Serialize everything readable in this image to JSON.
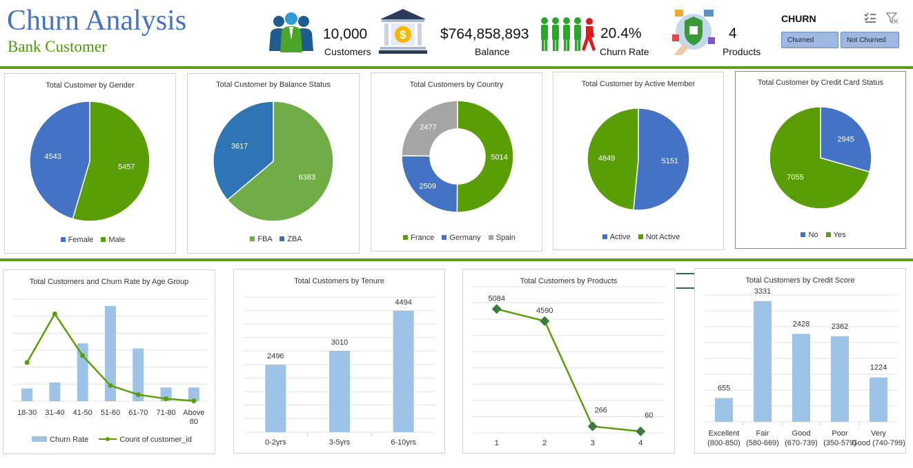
{
  "header": {
    "title": "Churn Analysis",
    "subtitle": "Bank Customer"
  },
  "kpis": [
    {
      "value": "10,000",
      "label": "Customers",
      "icon": "people-icon"
    },
    {
      "value": "$764,858,893",
      "label": "Balance",
      "icon": "bank-icon"
    },
    {
      "value": "20.4%",
      "label": "Churn Rate",
      "icon": "churn-people-icon"
    },
    {
      "value": "4",
      "label": "Products",
      "icon": "products-icon"
    }
  ],
  "slicer": {
    "title": "CHURN",
    "options": [
      "Churned",
      "Not Churned"
    ],
    "icons": [
      "multi-select-icon",
      "clear-filter-icon"
    ]
  },
  "colors": {
    "green": "#5a9e07",
    "blue": "#4472c4",
    "light_green": "#70ad47",
    "mid_blue": "#2e75b6",
    "gray": "#a5a5a5",
    "light_blue": "#9dc3e6",
    "rule": "#5aa012"
  },
  "charts": {
    "gender": {
      "title": "Total Customer by Gender",
      "legend": [
        "Female",
        "Male"
      ]
    },
    "balance": {
      "title": "Total Customer by Balance Status",
      "legend": [
        "FBA",
        "ZBA"
      ]
    },
    "country": {
      "title": "Total Customers by Country",
      "legend": [
        "France",
        "Germany",
        "Spain"
      ]
    },
    "active": {
      "title": "Total Customer by Active Member",
      "legend": [
        "Active",
        "Not Active"
      ]
    },
    "card": {
      "title": "Total Customer by Credit Card Status",
      "legend": [
        "No",
        "Yes"
      ]
    },
    "age": {
      "title": "Total Customers and Churn Rate by Age Group",
      "legend": [
        "Churn Rate",
        "Count of customer_id"
      ]
    },
    "tenure": {
      "title": "Total Customers by Tenure"
    },
    "products": {
      "title": "Total Customers by Products"
    },
    "credit": {
      "title": "Total Customers by Credit Score"
    }
  },
  "chart_data": [
    {
      "type": "pie",
      "title": "Total Customer by Gender",
      "labels": [
        "Female",
        "Male"
      ],
      "values": [
        5457,
        4543
      ],
      "colors": [
        "#5a9e07",
        "#4472c4"
      ],
      "legend_position": "bottom"
    },
    {
      "type": "pie",
      "title": "Total Customer by Balance Status",
      "labels": [
        "FBA",
        "ZBA"
      ],
      "values": [
        6383,
        3617
      ],
      "colors": [
        "#70ad47",
        "#2e75b6"
      ],
      "legend_position": "bottom"
    },
    {
      "type": "pie",
      "subtype": "doughnut",
      "title": "Total Customers by Country",
      "labels": [
        "France",
        "Germany",
        "Spain"
      ],
      "values": [
        5014,
        2509,
        2477
      ],
      "colors": [
        "#5a9e07",
        "#4472c4",
        "#a5a5a5"
      ],
      "legend_position": "bottom"
    },
    {
      "type": "pie",
      "title": "Total Customer by Active Member",
      "labels": [
        "Active",
        "Not Active"
      ],
      "values": [
        5151,
        4849
      ],
      "colors": [
        "#4472c4",
        "#5a9e07"
      ],
      "legend_position": "bottom"
    },
    {
      "type": "pie",
      "title": "Total Customer by Credit Card Status",
      "labels": [
        "No",
        "Yes"
      ],
      "values": [
        2945,
        7055
      ],
      "colors": [
        "#4472c4",
        "#5a9e07"
      ],
      "legend_position": "bottom"
    },
    {
      "type": "bar",
      "title": "Total Customers and Churn Rate by Age Group",
      "categories": [
        "18-30",
        "31-40",
        "41-50",
        "51-60",
        "61-70",
        "71-80",
        "Above 80"
      ],
      "series": [
        {
          "name": "Churn Rate",
          "type": "bar",
          "values": [
            0.075,
            0.11,
            0.34,
            0.56,
            0.31,
            0.08,
            0.08
          ]
        },
        {
          "name": "Count of customer_id",
          "type": "line",
          "values": [
            1968,
            4451,
            2320,
            797,
            331,
            121,
            12
          ]
        }
      ],
      "grid": true,
      "legend_position": "bottom"
    },
    {
      "type": "bar",
      "title": "Total Customers by Tenure",
      "categories": [
        "0-2yrs",
        "3-5yrs",
        "6-10yrs"
      ],
      "values": [
        2496,
        3010,
        4494
      ],
      "ylim": [
        0,
        5000
      ],
      "grid": true
    },
    {
      "type": "line",
      "title": "Total Customers by Products",
      "x": [
        1,
        2,
        3,
        4
      ],
      "values": [
        5084,
        4590,
        266,
        60
      ],
      "ylim": [
        0,
        6000
      ],
      "grid": true
    },
    {
      "type": "bar",
      "title": "Total Customers by Credit Score",
      "categories": [
        "Excellent (800-850)",
        "Fair (580-669)",
        "Good (670-739)",
        "Poor (350-579)",
        "Very Good (740-799)"
      ],
      "values": [
        655,
        3331,
        2428,
        2362,
        1224
      ],
      "ylim": [
        0,
        3500
      ],
      "grid": true
    }
  ]
}
